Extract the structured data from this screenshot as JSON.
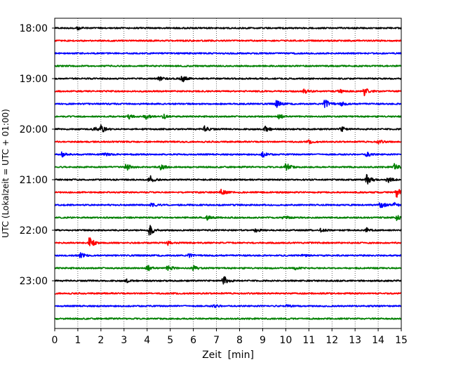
{
  "chart_data": {
    "type": "line",
    "title": "",
    "xlabel": "Zeit  [min]",
    "ylabel": "UTC (Lokalzeit = UTC + 01:00)",
    "xlim": [
      0,
      15
    ],
    "x_ticks": [
      "0",
      "1",
      "2",
      "3",
      "4",
      "5",
      "6",
      "7",
      "8",
      "9",
      "10",
      "11",
      "12",
      "13",
      "14",
      "15"
    ],
    "y_ticks": [
      "18:00",
      "19:00",
      "20:00",
      "21:00",
      "22:00",
      "23:00"
    ],
    "y_tick_rows": [
      0,
      4,
      8,
      12,
      16,
      20
    ],
    "row_interval_min": 15,
    "grid": "vertical-dotted",
    "row_colors": [
      "#000000",
      "#ff0000",
      "#0000ff",
      "#008000"
    ],
    "rows": [
      {
        "start": "18:00",
        "color": "#000000",
        "events": [
          [
            1.0,
            0.4
          ]
        ]
      },
      {
        "start": "18:15",
        "color": "#ff0000",
        "events": []
      },
      {
        "start": "18:30",
        "color": "#0000ff",
        "events": []
      },
      {
        "start": "18:45",
        "color": "#008000",
        "events": []
      },
      {
        "start": "19:00",
        "color": "#000000",
        "events": [
          [
            4.5,
            0.5
          ],
          [
            5.5,
            1.0
          ]
        ]
      },
      {
        "start": "19:15",
        "color": "#ff0000",
        "events": [
          [
            10.8,
            0.6
          ],
          [
            12.3,
            0.6
          ],
          [
            13.4,
            1.0
          ]
        ]
      },
      {
        "start": "19:30",
        "color": "#0000ff",
        "events": [
          [
            9.6,
            1.0
          ],
          [
            11.7,
            1.3
          ],
          [
            12.4,
            0.5
          ]
        ]
      },
      {
        "start": "19:45",
        "color": "#008000",
        "events": [
          [
            3.2,
            0.6
          ],
          [
            3.9,
            0.7
          ],
          [
            4.7,
            0.6
          ],
          [
            9.7,
            0.7
          ]
        ]
      },
      {
        "start": "20:00",
        "color": "#000000",
        "events": [
          [
            1.7,
            0.6
          ],
          [
            2.0,
            1.2
          ],
          [
            6.5,
            1.0
          ],
          [
            9.1,
            0.9
          ],
          [
            12.4,
            0.7
          ]
        ]
      },
      {
        "start": "20:15",
        "color": "#ff0000",
        "events": [
          [
            11.0,
            0.4
          ],
          [
            14.0,
            0.5
          ]
        ]
      },
      {
        "start": "20:30",
        "color": "#0000ff",
        "events": [
          [
            0.3,
            0.7
          ],
          [
            2.1,
            0.5
          ],
          [
            9.0,
            0.7
          ],
          [
            13.5,
            0.7
          ]
        ]
      },
      {
        "start": "20:45",
        "color": "#008000",
        "events": [
          [
            3.1,
            1.0
          ],
          [
            4.6,
            0.7
          ],
          [
            10.0,
            1.3
          ],
          [
            14.7,
            1.0
          ]
        ]
      },
      {
        "start": "21:00",
        "color": "#000000",
        "events": [
          [
            4.1,
            1.2
          ],
          [
            13.5,
            1.5
          ],
          [
            14.4,
            0.8
          ]
        ]
      },
      {
        "start": "21:15",
        "color": "#ff0000",
        "events": [
          [
            7.2,
            0.8
          ],
          [
            14.8,
            1.3
          ]
        ]
      },
      {
        "start": "21:30",
        "color": "#0000ff",
        "events": [
          [
            4.2,
            0.5
          ],
          [
            14.1,
            1.0
          ],
          [
            14.7,
            0.5
          ]
        ]
      },
      {
        "start": "21:45",
        "color": "#008000",
        "events": [
          [
            6.6,
            0.5
          ],
          [
            9.9,
            0.5
          ],
          [
            14.8,
            0.7
          ]
        ]
      },
      {
        "start": "22:00",
        "color": "#000000",
        "events": [
          [
            4.1,
            1.5
          ],
          [
            8.7,
            0.5
          ],
          [
            11.5,
            0.5
          ],
          [
            13.5,
            0.5
          ]
        ]
      },
      {
        "start": "22:15",
        "color": "#ff0000",
        "events": [
          [
            1.5,
            1.5
          ],
          [
            4.9,
            0.5
          ]
        ]
      },
      {
        "start": "22:30",
        "color": "#0000ff",
        "events": [
          [
            1.1,
            0.7
          ],
          [
            5.8,
            0.5
          ],
          [
            10.7,
            0.5
          ]
        ]
      },
      {
        "start": "22:45",
        "color": "#008000",
        "events": [
          [
            4.0,
            0.9
          ],
          [
            4.9,
            0.8
          ],
          [
            6.0,
            0.6
          ],
          [
            10.4,
            0.4
          ]
        ]
      },
      {
        "start": "23:00",
        "color": "#000000",
        "events": [
          [
            3.1,
            0.5
          ],
          [
            7.3,
            1.4
          ]
        ]
      },
      {
        "start": "23:15",
        "color": "#ff0000",
        "events": []
      },
      {
        "start": "23:30",
        "color": "#0000ff",
        "events": [
          [
            6.9,
            0.4
          ],
          [
            10.0,
            0.4
          ]
        ]
      },
      {
        "start": "23:45",
        "color": "#008000",
        "events": []
      }
    ]
  }
}
